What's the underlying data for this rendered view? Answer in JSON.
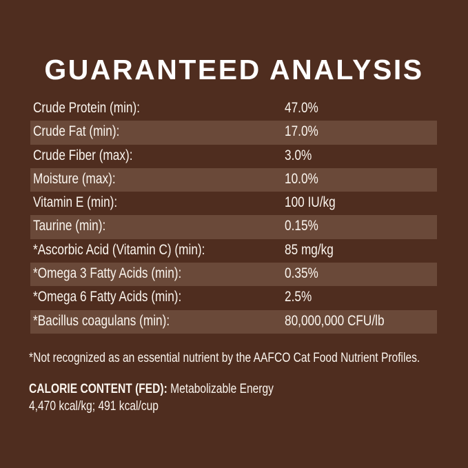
{
  "title": "GUARANTEED ANALYSIS",
  "colors": {
    "background": "#4f2d1f",
    "stripe": "#6a4939",
    "text": "#fbf5ee"
  },
  "rows": [
    {
      "label": "Crude Protein (min):",
      "value": "47.0%"
    },
    {
      "label": "Crude Fat (min):",
      "value": "17.0%"
    },
    {
      "label": "Crude Fiber (max):",
      "value": "3.0%"
    },
    {
      "label": "Moisture (max):",
      "value": "10.0%"
    },
    {
      "label": "Vitamin E (min):",
      "value": "100 IU/kg"
    },
    {
      "label": "Taurine (min):",
      "value": "0.15%"
    },
    {
      "label": "*Ascorbic Acid (Vitamin C) (min):",
      "value": "85 mg/kg"
    },
    {
      "label": "*Omega 3 Fatty Acids (min):",
      "value": "0.35%"
    },
    {
      "label": "*Omega 6 Fatty Acids (min):",
      "value": "2.5%"
    },
    {
      "label": "*Bacillus coagulans (min):",
      "value": "80,000,000 CFU/lb"
    }
  ],
  "footnote": "*Not recognized as an essential nutrient by the AAFCO Cat Food Nutrient Profiles.",
  "calorie": {
    "heading": "CALORIE CONTENT (FED):",
    "text": " Metabolizable Energy",
    "values": "4,470 kcal/kg; 491 kcal/cup"
  }
}
